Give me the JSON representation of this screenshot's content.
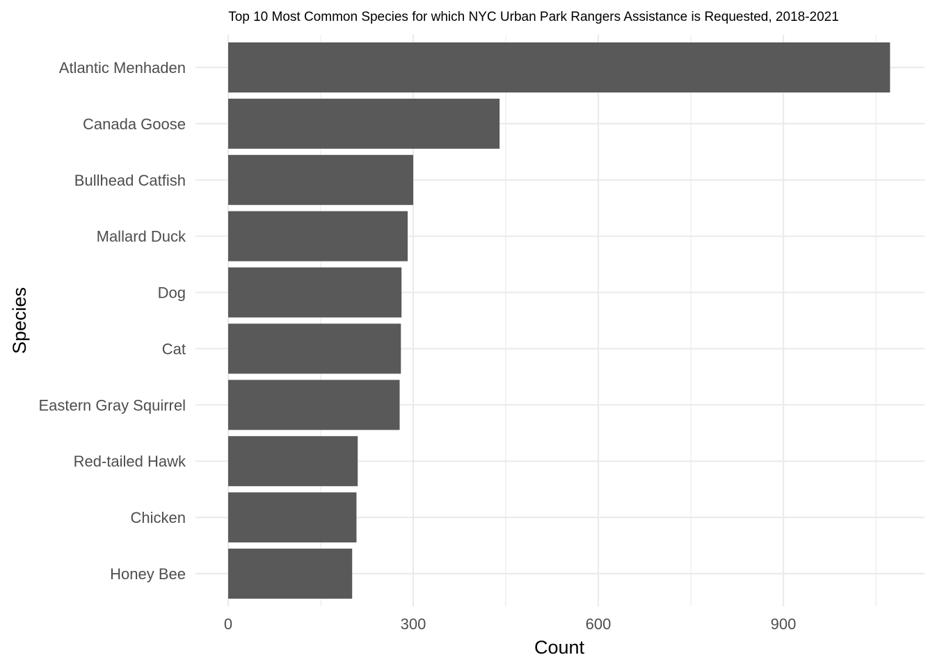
{
  "chart_data": {
    "type": "bar",
    "orientation": "horizontal",
    "title": "Top 10 Most Common Species for which NYC Urban Park Rangers Assistance is Requested, 2018-2021",
    "xlabel": "Count",
    "ylabel": "Species",
    "categories": [
      "Atlantic Menhaden",
      "Canada Goose",
      "Bullhead Catfish",
      "Mallard Duck",
      "Dog",
      "Cat",
      "Eastern Gray Squirrel",
      "Red-tailed Hawk",
      "Chicken",
      "Honey Bee"
    ],
    "values": [
      1073,
      440,
      300,
      291,
      281,
      280,
      278,
      210,
      208,
      201
    ],
    "xlim": [
      0,
      1125
    ],
    "xticks": [
      0,
      300,
      600,
      900
    ],
    "xtick_labels": [
      "0",
      "300",
      "600",
      "900"
    ],
    "grid": true,
    "legend": "none",
    "colors": {
      "bar": "#595959",
      "grid": "#ebebeb",
      "axis_text": "#4d4d4d",
      "title_text": "#000000"
    }
  }
}
